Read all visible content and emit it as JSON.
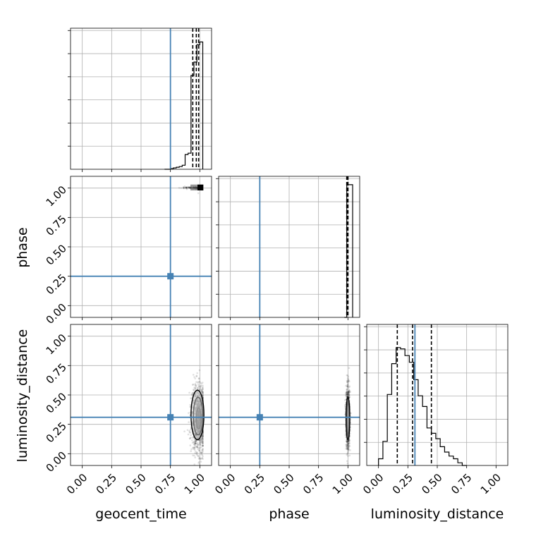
{
  "chart_data": {
    "type": "corner",
    "parameters": [
      "geocent_time",
      "phase",
      "luminosity_distance"
    ],
    "axis_labels": {
      "geocent_time": "geocent_time",
      "phase": "phase",
      "luminosity_distance": "luminosity_distance"
    },
    "range": [
      -0.1,
      1.1
    ],
    "tick_values": [
      0.0,
      0.25,
      0.5,
      0.75,
      1.0
    ],
    "tick_labels": [
      "0.00",
      "0.25",
      "0.50",
      "0.75",
      "1.00"
    ],
    "truths": {
      "geocent_time": 0.75,
      "phase": 0.25,
      "luminosity_distance": 0.31
    },
    "truth_color": "#4682b4",
    "grid": true,
    "histograms": {
      "geocent_time": {
        "edges": [
          0.7,
          0.725,
          0.75,
          0.775,
          0.8,
          0.825,
          0.85,
          0.875,
          0.9,
          0.925,
          0.95,
          0.975,
          1.0,
          1.025
        ],
        "counts": [
          0.0,
          0.0,
          0.005,
          0.01,
          0.015,
          0.02,
          0.03,
          0.11,
          0.12,
          0.7,
          0.8,
          0.93,
          0.95
        ],
        "quantiles": [
          0.94,
          0.97,
          0.99
        ]
      },
      "phase": {
        "edges": [
          0.97,
          0.99,
          1.0,
          1.04
        ],
        "counts": [
          0.0,
          0.99,
          0.99
        ],
        "quantiles": [
          0.99,
          1.0,
          1.0
        ]
      },
      "luminosity_distance": {
        "edges": [
          0.0,
          0.0375,
          0.075,
          0.1125,
          0.15,
          0.1875,
          0.225,
          0.2625,
          0.3,
          0.3375,
          0.375,
          0.4125,
          0.45,
          0.4875,
          0.525,
          0.5625,
          0.6,
          0.6375,
          0.675,
          0.7125,
          0.75
        ],
        "counts": [
          0.05,
          0.18,
          0.53,
          0.76,
          0.88,
          0.87,
          0.82,
          0.77,
          0.64,
          0.52,
          0.44,
          0.28,
          0.24,
          0.2,
          0.14,
          0.1,
          0.07,
          0.05,
          0.02,
          0.0
        ],
        "quantiles": [
          0.16,
          0.29,
          0.45
        ]
      }
    },
    "scatter_2d": {
      "phase_vs_geocent_time": {
        "x_center": 0.985,
        "x_spread": 0.025,
        "y_center": 1.0,
        "y_spread": 0.015
      },
      "luminosity_distance_vs_geocent_time": {
        "x_center": 0.99,
        "x_spread": 0.03,
        "y_center": 0.3,
        "y_spread": 0.13,
        "contours": [
          {
            "cx": 0.99,
            "cy": 0.3,
            "rx": 0.02,
            "ry": 0.09
          },
          {
            "cx": 0.985,
            "cy": 0.32,
            "rx": 0.04,
            "ry": 0.16
          },
          {
            "cx": 0.98,
            "cy": 0.33,
            "rx": 0.055,
            "ry": 0.21
          }
        ]
      },
      "luminosity_distance_vs_phase": {
        "x_center": 1.0,
        "x_spread": 0.008,
        "y_center": 0.3,
        "y_spread": 0.13,
        "contours": [
          {
            "cx": 1.0,
            "cy": 0.29,
            "rx": 0.008,
            "ry": 0.09
          },
          {
            "cx": 1.0,
            "cy": 0.3,
            "rx": 0.012,
            "ry": 0.13
          },
          {
            "cx": 1.0,
            "cy": 0.3,
            "rx": 0.016,
            "ry": 0.18
          }
        ]
      }
    }
  }
}
